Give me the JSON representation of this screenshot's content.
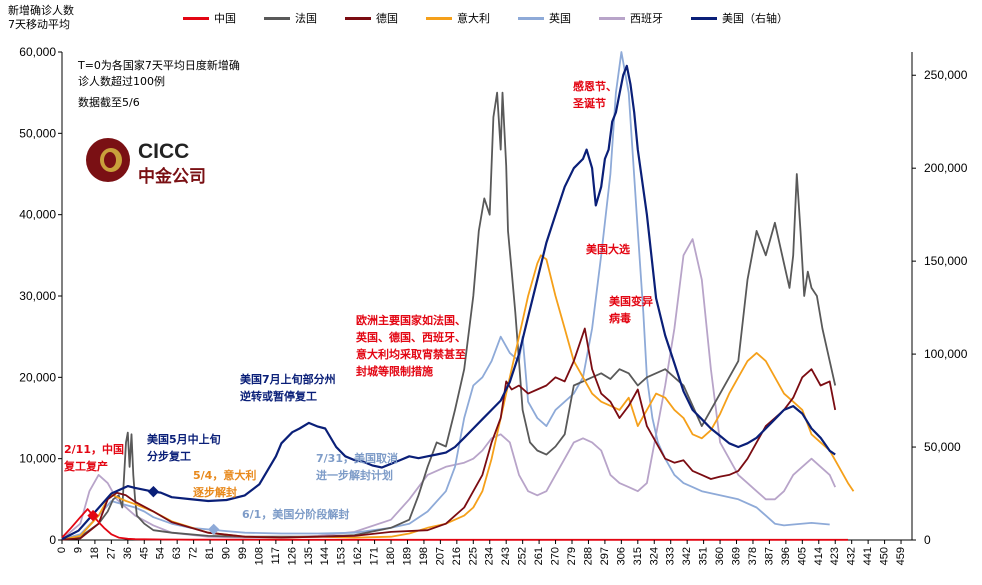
{
  "header": {
    "ytitle_line1": "新增确诊人数",
    "ytitle_line2": "7天移动平均"
  },
  "notes": {
    "line1": "T=0为各国家7天平均日度新增确",
    "line2": "诊人数超过100例",
    "line3": "数据截至5/6"
  },
  "logo": {
    "en": "CICC",
    "cn": "中金公司"
  },
  "annotations": {
    "a1_line1": "2/11，中国",
    "a1_line2": "复工复产",
    "a2_line1": "美国5月中上旬",
    "a2_line2": "分步复工",
    "a3_line1": "5/4，意大利",
    "a3_line2": "逐步解封",
    "a4": "6/1，美国分阶段解封",
    "a5_line1": "美国7月上旬部分州",
    "a5_line2": "逆转或暂停复工",
    "a6_line1": "7/31，美国取消",
    "a6_line2": "进一步解封计划",
    "a7_line1": "欧洲主要国家如法国、",
    "a7_line2": "英国、德国、西班牙、",
    "a7_line3": "意大利均采取宵禁甚至",
    "a7_line4": "封城等限制措施",
    "a8_line1": "感恩节、",
    "a8_line2": "圣诞节",
    "a9": "美国大选",
    "a10_line1": "美国变异",
    "a10_line2": "病毒"
  },
  "colors": {
    "china": "#e30613",
    "france": "#595959",
    "germany": "#7b0c12",
    "italy": "#f5a01a",
    "uk": "#8eaad8",
    "spain": "#b8a4c9",
    "us": "#0a1f78",
    "red_text": "#e30613",
    "navy_text": "#0a1f78",
    "orange_text": "#e8891c",
    "blue_text": "#7e9cc8",
    "axis": "#000000"
  },
  "chart_data": {
    "type": "line",
    "title": "",
    "xlabel": "",
    "ylabel": "新增确诊人数 7天移动平均",
    "y_right_label": "美国（右轴）",
    "xlim": [
      0,
      465
    ],
    "ylim_left": [
      0,
      60000
    ],
    "ylim_right": [
      0,
      262500
    ],
    "x_ticks": [
      0,
      9,
      18,
      27,
      36,
      45,
      54,
      63,
      72,
      81,
      90,
      99,
      108,
      117,
      126,
      135,
      144,
      153,
      162,
      171,
      180,
      189,
      198,
      207,
      216,
      225,
      234,
      243,
      252,
      261,
      270,
      279,
      288,
      297,
      306,
      315,
      324,
      333,
      342,
      351,
      360,
      369,
      378,
      387,
      396,
      405,
      414,
      423,
      432,
      441,
      450,
      459
    ],
    "y_left_ticks": [
      0,
      10000,
      20000,
      30000,
      40000,
      50000,
      60000
    ],
    "y_left_tick_labels": [
      "0",
      "10,000",
      "20,000",
      "30,000",
      "40,000",
      "50,000",
      "60,000"
    ],
    "y_right_ticks": [
      0,
      50000,
      100000,
      150000,
      200000,
      250000
    ],
    "y_right_tick_labels": [
      "0",
      "50,000",
      "100,000",
      "150,000",
      "200,000",
      "250,000"
    ],
    "legend_position": "top",
    "series": [
      {
        "name": "中国",
        "key": "china",
        "axis": "left",
        "x": [
          0,
          5,
          10,
          14,
          17,
          20,
          23,
          27,
          31,
          36,
          40,
          45,
          55,
          70,
          90,
          120,
          160,
          200,
          240,
          280,
          300,
          320,
          360,
          400,
          430
        ],
        "y": [
          300,
          1500,
          2800,
          3800,
          3000,
          2200,
          1500,
          700,
          300,
          150,
          100,
          80,
          60,
          40,
          40,
          30,
          30,
          30,
          30,
          30,
          30,
          30,
          30,
          30,
          30
        ]
      },
      {
        "name": "法国",
        "key": "france",
        "axis": "left",
        "x": [
          0,
          10,
          20,
          25,
          28,
          31,
          33,
          35,
          36,
          37,
          38,
          39,
          40,
          41,
          45,
          50,
          60,
          80,
          100,
          120,
          140,
          160,
          180,
          190,
          195,
          200,
          205,
          210,
          215,
          220,
          225,
          228,
          231,
          234,
          236,
          238,
          240,
          241,
          243,
          244,
          246,
          248,
          250,
          252,
          256,
          260,
          265,
          270,
          275,
          280,
          285,
          290,
          295,
          300,
          305,
          310,
          315,
          320,
          330,
          340,
          350,
          360,
          370,
          375,
          380,
          385,
          390,
          395,
          398,
          400,
          402,
          404,
          406,
          408,
          410,
          413,
          416,
          420,
          423
        ],
        "y": [
          100,
          400,
          2000,
          3500,
          5000,
          5500,
          4000,
          12000,
          13200,
          9000,
          13000,
          8000,
          5000,
          3000,
          2000,
          1200,
          900,
          500,
          400,
          400,
          400,
          600,
          1500,
          2500,
          5500,
          9000,
          12000,
          11500,
          16000,
          21000,
          30000,
          38000,
          42000,
          40000,
          52000,
          55000,
          48000,
          55000,
          46000,
          38000,
          33000,
          28000,
          22000,
          16000,
          12000,
          11000,
          10500,
          11500,
          13000,
          19000,
          19500,
          20000,
          20500,
          19800,
          21000,
          20500,
          19000,
          20000,
          21000,
          19000,
          14000,
          18000,
          22000,
          32000,
          38000,
          35000,
          39000,
          34000,
          31000,
          35000,
          45000,
          38000,
          30000,
          33000,
          31000,
          30000,
          26000,
          22000,
          19000
        ]
      },
      {
        "name": "德国",
        "key": "germany",
        "axis": "left",
        "x": [
          0,
          10,
          20,
          25,
          30,
          35,
          40,
          50,
          60,
          80,
          100,
          120,
          140,
          160,
          180,
          200,
          210,
          220,
          225,
          230,
          235,
          240,
          243,
          246,
          250,
          255,
          260,
          265,
          270,
          275,
          280,
          283,
          286,
          290,
          295,
          300,
          305,
          310,
          315,
          320,
          325,
          330,
          335,
          340,
          345,
          350,
          355,
          360,
          365,
          370,
          375,
          380,
          385,
          390,
          395,
          400,
          405,
          410,
          415,
          420,
          423
        ],
        "y": [
          50,
          200,
          2000,
          5000,
          5800,
          5500,
          4700,
          3500,
          2200,
          900,
          400,
          300,
          400,
          500,
          1000,
          1200,
          2000,
          4000,
          6000,
          8000,
          12000,
          15000,
          19500,
          18500,
          19000,
          18000,
          18500,
          19000,
          20000,
          19500,
          22000,
          24000,
          26000,
          21000,
          18000,
          17000,
          15000,
          16500,
          18500,
          14000,
          12000,
          10000,
          9500,
          9800,
          8500,
          8000,
          7500,
          7800,
          8000,
          8500,
          10000,
          12000,
          14000,
          15000,
          16000,
          17500,
          20000,
          21000,
          19000,
          19500,
          16000
        ]
      },
      {
        "name": "意大利",
        "key": "italy",
        "axis": "left",
        "x": [
          0,
          10,
          20,
          25,
          27,
          30,
          35,
          40,
          50,
          60,
          80,
          100,
          120,
          140,
          160,
          180,
          190,
          200,
          210,
          220,
          225,
          230,
          235,
          240,
          245,
          250,
          255,
          260,
          262,
          265,
          270,
          275,
          280,
          285,
          290,
          295,
          300,
          305,
          310,
          315,
          320,
          325,
          330,
          335,
          340,
          345,
          350,
          355,
          360,
          365,
          370,
          375,
          380,
          385,
          390,
          395,
          400,
          405,
          410,
          415,
          420,
          425,
          430,
          433
        ],
        "y": [
          50,
          500,
          3000,
          5000,
          5600,
          5300,
          4800,
          4400,
          3500,
          2300,
          900,
          400,
          300,
          400,
          300,
          400,
          800,
          1500,
          2000,
          3000,
          4000,
          6000,
          10000,
          15000,
          20000,
          25000,
          30000,
          34000,
          35000,
          34500,
          30000,
          26000,
          22000,
          20000,
          18000,
          17000,
          16500,
          16000,
          17500,
          14000,
          16000,
          18000,
          17500,
          16000,
          15000,
          13000,
          12500,
          13500,
          15500,
          18000,
          20000,
          22000,
          23000,
          22000,
          20000,
          18000,
          17000,
          16000,
          13000,
          12000,
          11000,
          9000,
          7000,
          6000
        ]
      },
      {
        "name": "英国",
        "key": "uk",
        "axis": "left",
        "x": [
          0,
          10,
          20,
          27,
          30,
          35,
          40,
          45,
          50,
          60,
          70,
          80,
          90,
          100,
          120,
          140,
          160,
          180,
          190,
          200,
          210,
          215,
          220,
          225,
          230,
          235,
          240,
          245,
          250,
          252,
          255,
          260,
          265,
          270,
          275,
          280,
          285,
          290,
          295,
          300,
          303,
          306,
          310,
          315,
          318,
          320,
          323,
          326,
          330,
          335,
          340,
          345,
          350,
          360,
          370,
          380,
          385,
          390,
          395,
          400,
          410,
          420
        ],
        "y": [
          100,
          700,
          3000,
          4800,
          4600,
          4300,
          4000,
          3500,
          2800,
          2000,
          1500,
          1300,
          1100,
          900,
          800,
          800,
          900,
          1500,
          2000,
          3500,
          6000,
          9000,
          15000,
          19000,
          20000,
          22000,
          25000,
          23000,
          22000,
          25000,
          17000,
          15000,
          14000,
          16000,
          17000,
          18000,
          20000,
          26000,
          35000,
          45000,
          55000,
          60000,
          55000,
          38000,
          28000,
          20000,
          15000,
          12000,
          10000,
          8000,
          7000,
          6500,
          6000,
          5500,
          5000,
          4000,
          3000,
          2000,
          1800,
          1900,
          2100,
          1900
        ]
      },
      {
        "name": "西班牙",
        "key": "spain",
        "axis": "left",
        "x": [
          0,
          10,
          15,
          20,
          25,
          30,
          35,
          40,
          50,
          60,
          80,
          100,
          120,
          140,
          160,
          180,
          190,
          200,
          210,
          220,
          225,
          230,
          235,
          240,
          245,
          250,
          255,
          260,
          265,
          270,
          275,
          280,
          285,
          290,
          295,
          300,
          305,
          310,
          315,
          320,
          325,
          330,
          335,
          340,
          345,
          350,
          355,
          360,
          370,
          375,
          380,
          385,
          390,
          395,
          400,
          405,
          410,
          415,
          420,
          423
        ],
        "y": [
          100,
          2000,
          6000,
          8000,
          7000,
          5000,
          4000,
          3000,
          1800,
          900,
          400,
          300,
          300,
          500,
          1000,
          2500,
          5000,
          8000,
          9000,
          9500,
          10000,
          11000,
          12500,
          13000,
          12000,
          8000,
          6000,
          5500,
          6000,
          8000,
          10000,
          12000,
          12500,
          12000,
          11000,
          8000,
          7000,
          6500,
          6000,
          7000,
          13000,
          19000,
          26000,
          35000,
          37000,
          32000,
          21000,
          12000,
          8000,
          7000,
          6000,
          5000,
          5000,
          6000,
          8000,
          9000,
          10000,
          9000,
          8000,
          6500
        ]
      },
      {
        "name": "美国（右轴）",
        "key": "us",
        "axis": "right",
        "x": [
          0,
          9,
          18,
          27,
          36,
          40,
          45,
          50,
          54,
          60,
          70,
          80,
          90,
          100,
          108,
          117,
          120,
          126,
          130,
          135,
          140,
          144,
          150,
          155,
          160,
          165,
          170,
          175,
          180,
          185,
          190,
          195,
          200,
          205,
          210,
          215,
          220,
          225,
          230,
          235,
          240,
          245,
          250,
          255,
          260,
          265,
          270,
          275,
          280,
          285,
          287,
          290,
          292,
          295,
          297,
          299,
          301,
          303,
          305,
          307,
          309,
          311,
          313,
          315,
          320,
          325,
          330,
          335,
          340,
          345,
          350,
          355,
          360,
          365,
          370,
          375,
          380,
          385,
          390,
          395,
          400,
          405,
          410,
          415,
          420,
          423
        ],
        "y": [
          500,
          5000,
          15000,
          25000,
          29000,
          28000,
          27000,
          26000,
          25500,
          23000,
          22000,
          21000,
          21500,
          24000,
          30000,
          45000,
          52000,
          58000,
          60000,
          63000,
          61000,
          60000,
          50000,
          45000,
          43000,
          42000,
          40000,
          39000,
          41000,
          43000,
          45000,
          44000,
          45000,
          46000,
          47000,
          50000,
          55000,
          60000,
          65000,
          70000,
          75000,
          85000,
          100000,
          120000,
          140000,
          160000,
          175000,
          190000,
          200000,
          205000,
          210000,
          200000,
          180000,
          190000,
          205000,
          210000,
          225000,
          230000,
          240000,
          250000,
          255000,
          245000,
          230000,
          210000,
          175000,
          130000,
          110000,
          95000,
          80000,
          70000,
          65000,
          60000,
          56000,
          52000,
          50000,
          52000,
          55000,
          60000,
          65000,
          70000,
          72000,
          68000,
          60000,
          55000,
          48000,
          46000
        ]
      }
    ]
  }
}
